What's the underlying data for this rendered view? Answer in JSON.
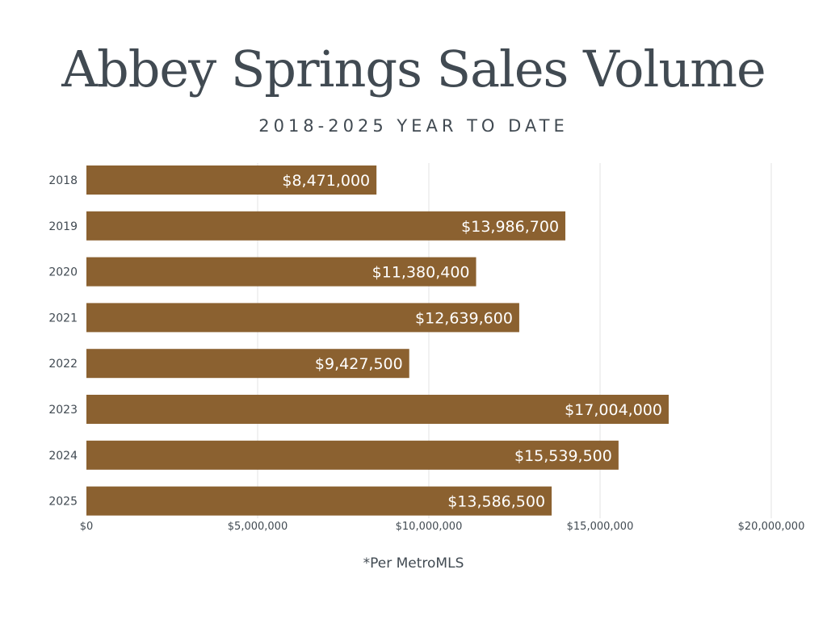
{
  "chart_data": {
    "type": "bar",
    "orientation": "horizontal",
    "title": "Abbey Springs Sales Volume",
    "subtitle": "2018-2025 YEAR TO DATE",
    "categories": [
      "2018",
      "2019",
      "2020",
      "2021",
      "2022",
      "2023",
      "2024",
      "2025"
    ],
    "values": [
      8471000,
      13986700,
      11380400,
      12639600,
      9427500,
      17004000,
      15539500,
      13586500
    ],
    "data_labels": [
      "$8,471,000",
      "$13,986,700",
      "$11,380,400",
      "$12,639,600",
      "$9,427,500",
      "$17,004,000",
      "$15,539,500",
      "$13,586,500"
    ],
    "xlim": [
      0,
      20000000
    ],
    "x_ticks": [
      0,
      5000000,
      10000000,
      15000000,
      20000000
    ],
    "x_tick_labels": [
      "$0",
      "$5,000,000",
      "$10,000,000",
      "$15,000,000",
      "$20,000,000"
    ],
    "xlabel": "",
    "ylabel": "",
    "grid": true,
    "legend": "none",
    "bar_color": "#8b6130",
    "annotation": "*Per MetroMLS"
  }
}
